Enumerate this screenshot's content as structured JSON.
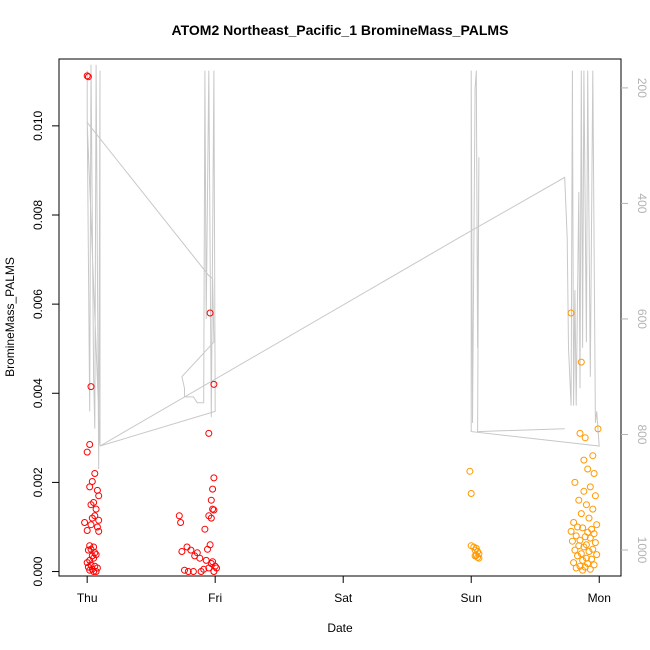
{
  "chart_data": {
    "type": "scatter",
    "title": "ATOM2 Northeast_Pacific_1 BromineMass_PALMS",
    "xlabel": "Date",
    "ylabel": "BromineMass_PALMS",
    "x_tick_labels": [
      "Thu",
      "Fri",
      "Sat",
      "Sun",
      "Mon"
    ],
    "x_tick_days": [
      0,
      1,
      2,
      3,
      4
    ],
    "xlim_days": [
      -0.22,
      4.17
    ],
    "ylim": [
      -0.0001,
      0.0115
    ],
    "y_ticks": [
      0.0,
      0.002,
      0.004,
      0.006,
      0.008,
      0.01
    ],
    "y_tick_labels": [
      "0.000",
      "0.002",
      "0.004",
      "0.006",
      "0.008",
      "0.010"
    ],
    "y2_ticks": [
      200,
      400,
      600,
      800,
      1000
    ],
    "y2_tick_labels": [
      "200",
      "400",
      "600",
      "800",
      "1000"
    ],
    "y2lim": [
      1045,
      150
    ],
    "colors": {
      "red": "#ff0000",
      "orange": "#ff9900",
      "pressure": "#c8c8c8",
      "axis": "#000000",
      "axis2": "#b3b3b3"
    },
    "series": [
      {
        "color": "red",
        "points": [
          [
            0.0,
            0.01112
          ],
          [
            0.01,
            0.0111
          ],
          [
            0.03,
            0.00415
          ],
          [
            0.0,
            0.00268
          ],
          [
            0.02,
            0.00285
          ],
          [
            0.04,
            0.00202
          ],
          [
            0.02,
            0.0019
          ],
          [
            0.06,
            0.0022
          ],
          [
            0.08,
            0.00182
          ],
          [
            0.09,
            0.0017
          ],
          [
            0.05,
            0.00155
          ],
          [
            0.03,
            0.0015
          ],
          [
            0.07,
            0.0014
          ],
          [
            0.04,
            0.0012
          ],
          [
            0.09,
            0.00115
          ],
          [
            0.06,
            0.00125
          ],
          [
            0.03,
            0.00105
          ],
          [
            0.08,
            0.001
          ],
          [
            0.0,
            0.00092
          ],
          [
            0.09,
            0.0009
          ],
          [
            0.02,
            0.00058
          ],
          [
            0.05,
            0.00055
          ],
          [
            0.03,
            0.0005
          ],
          [
            0.01,
            0.00048
          ],
          [
            0.06,
            0.00042
          ],
          [
            0.07,
            0.00038
          ],
          [
            0.04,
            0.00035
          ],
          [
            0.05,
            0.0003
          ],
          [
            0.02,
            0.00025
          ],
          [
            0.0,
            0.0002
          ],
          [
            0.03,
            0.00015
          ],
          [
            0.06,
            0.00012
          ],
          [
            0.01,
            0.0001
          ],
          [
            0.08,
            8e-05
          ],
          [
            0.04,
            5e-05
          ],
          [
            0.02,
            3e-05
          ],
          [
            0.07,
            0.0
          ],
          [
            0.05,
            0.0
          ],
          [
            -0.02,
            0.0011
          ],
          [
            0.96,
            0.0058
          ],
          [
            0.99,
            0.0042
          ],
          [
            0.95,
            0.0031
          ],
          [
            0.99,
            0.0021
          ],
          [
            0.98,
            0.00185
          ],
          [
            0.97,
            0.0016
          ],
          [
            0.98,
            0.0014
          ],
          [
            0.99,
            0.00138
          ],
          [
            0.95,
            0.00125
          ],
          [
            0.97,
            0.0012
          ],
          [
            0.72,
            0.00125
          ],
          [
            0.73,
            0.0011
          ],
          [
            0.92,
            0.00095
          ],
          [
            0.96,
            0.0006
          ],
          [
            0.94,
            0.0005
          ],
          [
            0.78,
            0.00055
          ],
          [
            0.81,
            0.00048
          ],
          [
            0.74,
            0.00045
          ],
          [
            0.86,
            0.00042
          ],
          [
            0.84,
            0.00035
          ],
          [
            0.88,
            0.0003
          ],
          [
            0.93,
            0.00025
          ],
          [
            0.98,
            0.00022
          ],
          [
            0.97,
            0.00018
          ],
          [
            1.0,
            0.00012
          ],
          [
            0.95,
            8e-05
          ],
          [
            0.76,
            3e-05
          ],
          [
            0.79,
            0.0
          ],
          [
            0.83,
            0.0
          ],
          [
            0.89,
            0.0
          ],
          [
            0.91,
            5e-05
          ],
          [
            1.01,
            8e-05
          ],
          [
            0.99,
            0.0
          ]
        ]
      },
      {
        "color": "orange",
        "points": [
          [
            2.99,
            0.00225
          ],
          [
            3.0,
            0.00175
          ],
          [
            3.0,
            0.00058
          ],
          [
            3.02,
            0.00055
          ],
          [
            3.04,
            0.00052
          ],
          [
            3.03,
            0.00048
          ],
          [
            3.05,
            0.00045
          ],
          [
            3.06,
            0.0004
          ],
          [
            3.04,
            0.00036
          ],
          [
            3.05,
            0.00032
          ],
          [
            3.06,
            0.0003
          ],
          [
            3.03,
            0.00035
          ],
          [
            3.78,
            0.0058
          ],
          [
            3.86,
            0.0047
          ],
          [
            3.85,
            0.0031
          ],
          [
            3.89,
            0.003
          ],
          [
            3.95,
            0.0026
          ],
          [
            3.99,
            0.0032
          ],
          [
            3.88,
            0.0025
          ],
          [
            3.91,
            0.0023
          ],
          [
            3.96,
            0.0022
          ],
          [
            3.81,
            0.002
          ],
          [
            3.93,
            0.0019
          ],
          [
            3.88,
            0.0018
          ],
          [
            3.97,
            0.0017
          ],
          [
            3.84,
            0.0016
          ],
          [
            3.9,
            0.0015
          ],
          [
            3.95,
            0.0014
          ],
          [
            3.86,
            0.0013
          ],
          [
            3.92,
            0.0012
          ],
          [
            3.8,
            0.0011
          ],
          [
            3.98,
            0.00105
          ],
          [
            3.83,
            0.001
          ],
          [
            3.87,
            0.00098
          ],
          [
            3.94,
            0.00095
          ],
          [
            3.78,
            0.0009
          ],
          [
            3.91,
            0.00088
          ],
          [
            3.96,
            0.00085
          ],
          [
            3.82,
            0.0008
          ],
          [
            3.89,
            0.00078
          ],
          [
            3.93,
            0.00075
          ],
          [
            3.85,
            0.0007
          ],
          [
            3.79,
            0.00068
          ],
          [
            3.97,
            0.00065
          ],
          [
            3.9,
            0.0006
          ],
          [
            3.84,
            0.00058
          ],
          [
            3.88,
            0.00055
          ],
          [
            3.95,
            0.0005
          ],
          [
            3.81,
            0.00048
          ],
          [
            3.92,
            0.00045
          ],
          [
            3.86,
            0.0004
          ],
          [
            3.98,
            0.00038
          ],
          [
            3.83,
            0.00035
          ],
          [
            3.9,
            0.0003
          ],
          [
            3.94,
            0.00028
          ],
          [
            3.87,
            0.00025
          ],
          [
            3.8,
            0.0002
          ],
          [
            3.91,
            0.00018
          ],
          [
            3.96,
            0.00015
          ],
          [
            3.85,
            0.00012
          ],
          [
            3.89,
            0.0001
          ],
          [
            3.82,
            8e-05
          ],
          [
            3.93,
            5e-05
          ],
          [
            3.87,
            3e-05
          ]
        ]
      }
    ],
    "pressure_line": [
      [
        0.0,
        170
      ],
      [
        0.0,
        250
      ],
      [
        0.02,
        760
      ],
      [
        0.03,
        160
      ],
      [
        0.05,
        700
      ],
      [
        0.06,
        790
      ],
      [
        0.07,
        160
      ],
      [
        0.09,
        860
      ],
      [
        0.1,
        170
      ],
      [
        0.1,
        820
      ],
      [
        0.0,
        260
      ],
      [
        0.95,
        525
      ],
      [
        0.98,
        530
      ],
      [
        0.99,
        640
      ],
      [
        0.74,
        700
      ],
      [
        0.76,
        720
      ],
      [
        0.76,
        735
      ],
      [
        0.83,
        735
      ],
      [
        0.86,
        745
      ],
      [
        0.91,
        745
      ],
      [
        0.92,
        170
      ],
      [
        0.93,
        600
      ],
      [
        0.95,
        170
      ],
      [
        0.97,
        770
      ],
      [
        0.99,
        170
      ],
      [
        1.0,
        760
      ],
      [
        0.1,
        820
      ],
      [
        2.9,
        460
      ],
      [
        3.73,
        355
      ],
      [
        3.73,
        355
      ],
      [
        3.75,
        460
      ],
      [
        3.76,
        650
      ],
      [
        3.78,
        750
      ],
      [
        3.79,
        170
      ],
      [
        3.8,
        750
      ],
      [
        3.81,
        550
      ],
      [
        3.82,
        750
      ],
      [
        3.84,
        380
      ],
      [
        3.85,
        720
      ],
      [
        3.86,
        170
      ],
      [
        3.87,
        650
      ],
      [
        3.88,
        170
      ],
      [
        3.9,
        640
      ],
      [
        3.91,
        170
      ],
      [
        3.93,
        700
      ],
      [
        3.95,
        170
      ],
      [
        3.97,
        780
      ],
      [
        3.98,
        760
      ],
      [
        4.0,
        820
      ],
      [
        4.0,
        820
      ],
      [
        3.0,
        795
      ],
      [
        3.0,
        170
      ],
      [
        3.01,
        780
      ],
      [
        3.03,
        200
      ],
      [
        3.04,
        170
      ],
      [
        3.05,
        650
      ],
      [
        3.06,
        320
      ],
      [
        3.05,
        795
      ],
      [
        3.73,
        790
      ]
    ]
  }
}
